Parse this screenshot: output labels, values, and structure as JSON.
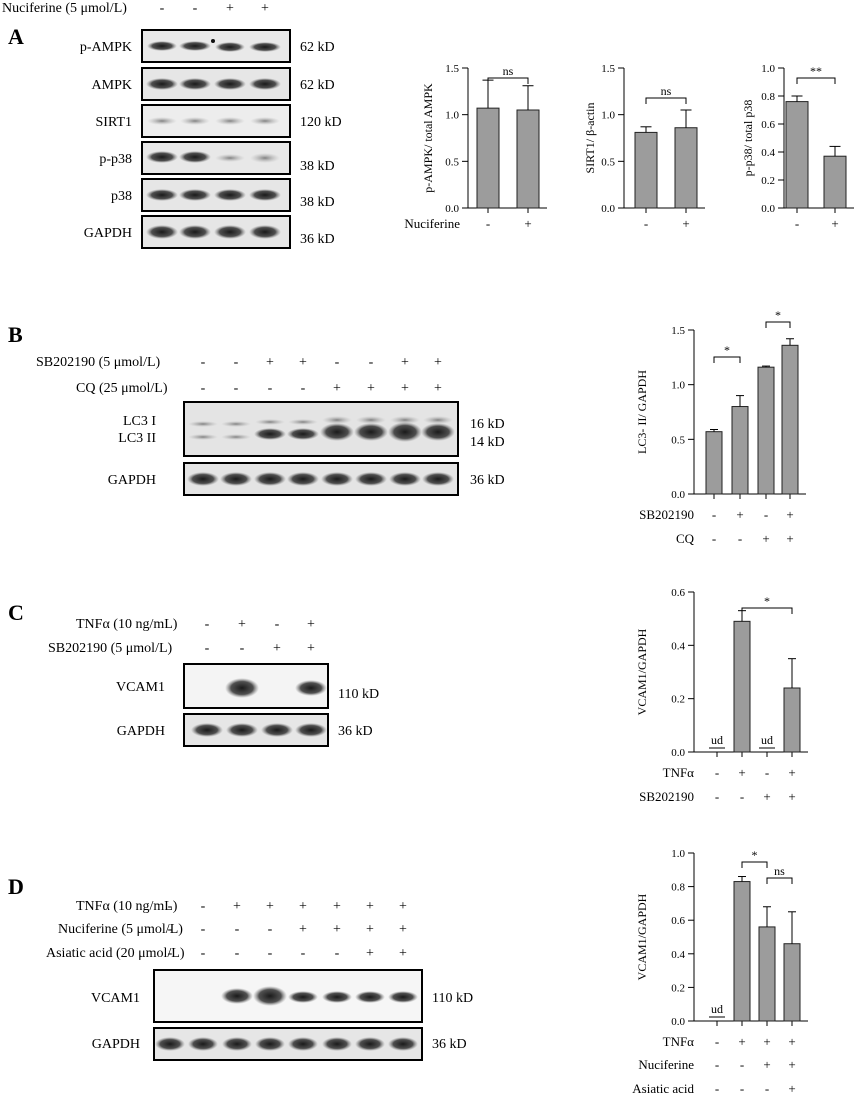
{
  "panelA": {
    "letter": "A",
    "treatment": {
      "label": "Nuciferine (5 μmol/L)",
      "signs": [
        "-",
        "-",
        "+",
        "+"
      ]
    },
    "blots": [
      {
        "name": "p-AMPK",
        "size": "62 kD"
      },
      {
        "name": "AMPK",
        "size": "62 kD"
      },
      {
        "name": "SIRT1",
        "size": "120 kD"
      },
      {
        "name": "p-p38",
        "size": "38 kD"
      },
      {
        "name": "p38",
        "size": "38 kD"
      },
      {
        "name": "GAPDH",
        "size": "36 kD"
      }
    ]
  },
  "panelB": {
    "letter": "B",
    "treatments": [
      {
        "label": "SB202190 (5 μmol/L)",
        "signs": [
          "-",
          "-",
          "+",
          "+",
          "-",
          "-",
          "+",
          "+"
        ]
      },
      {
        "label": "CQ (25 μmol/L)",
        "signs": [
          "-",
          "-",
          "-",
          "-",
          "+",
          "+",
          "+",
          "+"
        ]
      }
    ],
    "blots": [
      {
        "name1": "LC3 I",
        "name2": "LC3 II",
        "size1": "16 kD",
        "size2": "14 kD"
      },
      {
        "name": "GAPDH",
        "size": "36 kD"
      }
    ]
  },
  "panelC": {
    "letter": "C",
    "treatments": [
      {
        "label": "TNFα (10 ng/mL)",
        "signs": [
          "-",
          "+",
          "-",
          "+"
        ]
      },
      {
        "label": "SB202190 (5 μmol/L)",
        "signs": [
          "-",
          "-",
          "+",
          "+"
        ]
      }
    ],
    "blots": [
      {
        "name": "VCAM1",
        "size": "110 kD"
      },
      {
        "name": "GAPDH",
        "size": "36 kD"
      }
    ]
  },
  "panelD": {
    "letter": "D",
    "treatments": [
      {
        "label": "TNFα (10 ng/mL)",
        "signs": [
          "-",
          "-",
          "+",
          "+",
          "+",
          "+",
          "+",
          "+"
        ]
      },
      {
        "label": "Nuciferine (5 μmol/L)",
        "signs": [
          "-",
          "-",
          "-",
          "-",
          "+",
          "+",
          "+",
          "+"
        ]
      },
      {
        "label": "Asiatic acid  (20 μmol/L)",
        "signs": [
          "-",
          "-",
          "-",
          "-",
          "-",
          "-",
          "+",
          "+"
        ]
      }
    ],
    "blots": [
      {
        "name": "VCAM1",
        "size": "110 kD"
      },
      {
        "name": "GAPDH",
        "size": "36 kD"
      }
    ]
  },
  "chart_data": [
    {
      "id": "a1",
      "type": "bar",
      "ylabel": "p-AMPK/ total AMPK",
      "ylim": [
        0,
        1.5
      ],
      "yticks": [
        "0.0",
        "0.5",
        "1.0",
        "1.5"
      ],
      "values": [
        1.07,
        1.05
      ],
      "errors": [
        0.3,
        0.26
      ],
      "rows": [
        {
          "label": "Nuciferine",
          "signs": [
            "-",
            "+"
          ]
        }
      ],
      "annotations": [
        {
          "from": 0,
          "to": 1,
          "text": "ns"
        }
      ],
      "ud": []
    },
    {
      "id": "a2",
      "type": "bar",
      "ylabel": "SIRT1/ β-actin",
      "ylim": [
        0,
        1.5
      ],
      "yticks": [
        "0.0",
        "0.5",
        "1.0",
        "1.5"
      ],
      "values": [
        0.81,
        0.86
      ],
      "errors": [
        0.06,
        0.19
      ],
      "rows": [
        {
          "label": "",
          "signs": [
            "-",
            "+"
          ]
        }
      ],
      "annotations": [
        {
          "from": 0,
          "to": 1,
          "text": "ns"
        }
      ],
      "ud": []
    },
    {
      "id": "a3",
      "type": "bar",
      "ylabel": "p-p38/ total p38",
      "ylim": [
        0,
        1.0
      ],
      "yticks": [
        "0.0",
        "0.2",
        "0.4",
        "0.6",
        "0.8",
        "1.0"
      ],
      "values": [
        0.76,
        0.37
      ],
      "errors": [
        0.04,
        0.07
      ],
      "rows": [
        {
          "label": "",
          "signs": [
            "-",
            "+"
          ]
        }
      ],
      "annotations": [
        {
          "from": 0,
          "to": 1,
          "text": "**"
        }
      ],
      "ud": []
    },
    {
      "id": "b",
      "type": "bar",
      "ylabel": "LC3- II/ GAPDH",
      "ylim": [
        0,
        1.5
      ],
      "yticks": [
        "0.0",
        "0.5",
        "1.0",
        "1.5"
      ],
      "values": [
        0.57,
        0.8,
        1.16,
        1.36
      ],
      "errors": [
        0.02,
        0.1,
        0.01,
        0.06
      ],
      "rows": [
        {
          "label": "SB202190",
          "signs": [
            "-",
            "+",
            "-",
            "+"
          ]
        },
        {
          "label": "CQ",
          "signs": [
            "-",
            "-",
            "+",
            "+"
          ]
        }
      ],
      "annotations": [
        {
          "from": 0,
          "to": 1,
          "text": "*"
        },
        {
          "from": 2,
          "to": 3,
          "text": "*"
        }
      ],
      "ud": []
    },
    {
      "id": "c",
      "type": "bar",
      "ylabel": "VCAM1/GAPDH",
      "ylim": [
        0,
        0.6
      ],
      "yticks": [
        "0.0",
        "0.2",
        "0.4",
        "0.6"
      ],
      "values": [
        0,
        0.49,
        0,
        0.24
      ],
      "errors": [
        0,
        0.04,
        0,
        0.11
      ],
      "rows": [
        {
          "label": "TNFα",
          "signs": [
            "-",
            "+",
            "-",
            "+"
          ]
        },
        {
          "label": "SB202190",
          "signs": [
            "-",
            "-",
            "+",
            "+"
          ]
        }
      ],
      "annotations": [
        {
          "from": 1,
          "to": 3,
          "text": "*"
        }
      ],
      "ud": [
        {
          "bar": 0,
          "text": "ud"
        },
        {
          "bar": 2,
          "text": "ud"
        }
      ]
    },
    {
      "id": "d",
      "type": "bar",
      "ylabel": "VCAM1/GAPDH",
      "ylim": [
        0,
        1.0
      ],
      "yticks": [
        "0.0",
        "0.2",
        "0.4",
        "0.6",
        "0.8",
        "1.0"
      ],
      "values": [
        0,
        0.83,
        0.56,
        0.46
      ],
      "errors": [
        0,
        0.03,
        0.12,
        0.19
      ],
      "rows": [
        {
          "label": "TNFα",
          "signs": [
            "-",
            "+",
            "+",
            "+"
          ]
        },
        {
          "label": "Nuciferine",
          "signs": [
            "-",
            "-",
            "+",
            "+"
          ]
        },
        {
          "label": "Asiatic acid",
          "signs": [
            "-",
            "-",
            "-",
            "+"
          ]
        }
      ],
      "annotations": [
        {
          "from": 1,
          "to": 2,
          "text": "*"
        },
        {
          "from": 2,
          "to": 3,
          "text": "ns"
        }
      ],
      "ud": [
        {
          "bar": 0,
          "text": "ud"
        }
      ]
    }
  ]
}
